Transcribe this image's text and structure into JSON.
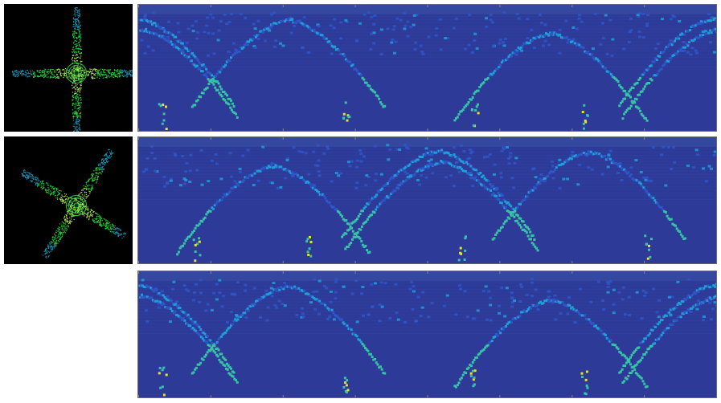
{
  "figure": {
    "rows": [
      {
        "birds_eye_view": {
          "present": true,
          "rotation_deg": 0
        },
        "range_image": {
          "shift": 0.0,
          "mirrored": false
        }
      },
      {
        "birds_eye_view": {
          "present": true,
          "rotation_deg": 32
        },
        "range_image": {
          "shift": 0.52,
          "mirrored": false
        }
      },
      {
        "birds_eye_view": {
          "present": false,
          "rotation_deg": 0
        },
        "range_image": {
          "shift": 0.0,
          "mirrored": false
        }
      }
    ],
    "colormap": {
      "background": "#2d3a97",
      "low": "#2f56c9",
      "mid": "#1f9fd8",
      "high": "#37c3a8",
      "peak": "#e6e620"
    },
    "bev_colors": {
      "background": "#000000",
      "points": "#21d23a",
      "points_light": "#b4e85a",
      "points_far": "#1a8fb0"
    }
  }
}
